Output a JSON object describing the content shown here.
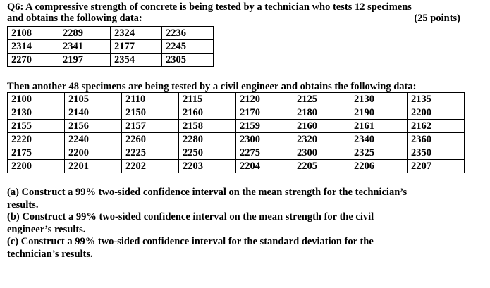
{
  "question": {
    "lines": [
      "Q6: A compressive strength of concrete is being tested by a technician who tests 12 specimens",
      "and obtains the following data:"
    ],
    "points": "(25 points)"
  },
  "table1": {
    "rows": [
      [
        2108,
        2289,
        2324,
        2236
      ],
      [
        2314,
        2341,
        2177,
        2245
      ],
      [
        2270,
        2197,
        2354,
        2305
      ]
    ]
  },
  "intro2": "Then another 48 specimens are being tested by a civil engineer and obtains the following data:",
  "table2": {
    "rows": [
      [
        2100,
        2105,
        2110,
        2115,
        2120,
        2125,
        2130,
        2135
      ],
      [
        2130,
        2140,
        2150,
        2160,
        2170,
        2180,
        2190,
        2200
      ],
      [
        2155,
        2156,
        2157,
        2158,
        2159,
        2160,
        2161,
        2162
      ],
      [
        2220,
        2240,
        2260,
        2280,
        2300,
        2320,
        2340,
        2360
      ],
      [
        2175,
        2200,
        2225,
        2250,
        2275,
        2300,
        2325,
        2350
      ],
      [
        2200,
        2201,
        2202,
        2203,
        2204,
        2205,
        2206,
        2207
      ]
    ]
  },
  "parts": [
    [
      "(a) Construct a 99% two-sided confidence interval on the mean strength for the technician’s",
      "results."
    ],
    [
      "(b) Construct a 99% two-sided confidence interval on the mean strength for the civil",
      "engineer’s results."
    ],
    [
      "(c) Construct a 99% two-sided confidence interval for the standard deviation for the",
      "technician’s results."
    ]
  ]
}
